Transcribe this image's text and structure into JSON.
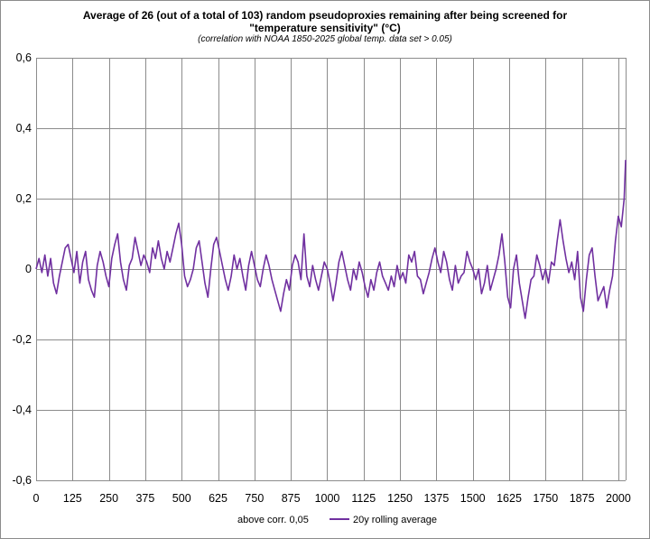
{
  "chart_data": {
    "type": "line",
    "title_lines": [
      "Average of 26 (out of a total of 103) random pseudoproxies remaining after being screened for",
      "\"temperature sensitivity\"  (°C)"
    ],
    "subtitle": "(correlation with NOAA 1850-2025 global  temp. data set > 0.05)",
    "xlabel": "",
    "ylabel": "",
    "xlim": [
      0,
      2025
    ],
    "ylim": [
      -0.6,
      0.6
    ],
    "x_ticks": [
      "0",
      "125",
      "250",
      "375",
      "500",
      "625",
      "750",
      "875",
      "1000",
      "1125",
      "1250",
      "1375",
      "1500",
      "1625",
      "1750",
      "1875",
      "2000"
    ],
    "x_tick_values": [
      0,
      125,
      250,
      375,
      500,
      625,
      750,
      875,
      1000,
      1125,
      1250,
      1375,
      1500,
      1625,
      1750,
      1875,
      2000
    ],
    "y_ticks": [
      "0,6",
      "0,4",
      "0,2",
      "0",
      "-0,2",
      "-0,4",
      "-0,6"
    ],
    "y_tick_values": [
      0.6,
      0.4,
      0.2,
      0,
      -0.2,
      -0.4,
      -0.6
    ],
    "grid": true,
    "legend_position": "bottom",
    "series": [
      {
        "name": "above corr. 0,05",
        "color": "",
        "values": []
      },
      {
        "name": "20y rolling average",
        "color": "#7030a0",
        "x": [
          0,
          10,
          20,
          30,
          40,
          50,
          60,
          70,
          80,
          90,
          100,
          110,
          120,
          130,
          140,
          150,
          160,
          170,
          180,
          190,
          200,
          210,
          220,
          230,
          240,
          250,
          260,
          270,
          280,
          290,
          300,
          310,
          320,
          330,
          340,
          350,
          360,
          370,
          380,
          390,
          400,
          410,
          420,
          430,
          440,
          450,
          460,
          470,
          480,
          490,
          500,
          510,
          520,
          530,
          540,
          550,
          560,
          570,
          580,
          590,
          600,
          610,
          620,
          630,
          640,
          650,
          660,
          670,
          680,
          690,
          700,
          710,
          720,
          730,
          740,
          750,
          760,
          770,
          780,
          790,
          800,
          810,
          820,
          830,
          840,
          850,
          860,
          870,
          880,
          890,
          900,
          910,
          920,
          930,
          940,
          950,
          960,
          970,
          980,
          990,
          1000,
          1010,
          1020,
          1030,
          1040,
          1050,
          1060,
          1070,
          1080,
          1090,
          1100,
          1110,
          1120,
          1130,
          1140,
          1150,
          1160,
          1170,
          1180,
          1190,
          1200,
          1210,
          1220,
          1230,
          1240,
          1250,
          1260,
          1270,
          1280,
          1290,
          1300,
          1310,
          1320,
          1330,
          1340,
          1350,
          1360,
          1370,
          1380,
          1390,
          1400,
          1410,
          1420,
          1430,
          1440,
          1450,
          1460,
          1470,
          1480,
          1490,
          1500,
          1510,
          1520,
          1530,
          1540,
          1550,
          1560,
          1570,
          1580,
          1590,
          1600,
          1610,
          1620,
          1630,
          1640,
          1650,
          1660,
          1670,
          1680,
          1690,
          1700,
          1710,
          1720,
          1730,
          1740,
          1750,
          1760,
          1770,
          1780,
          1790,
          1800,
          1810,
          1820,
          1830,
          1840,
          1850,
          1860,
          1870,
          1880,
          1890,
          1900,
          1910,
          1920,
          1930,
          1940,
          1950,
          1960,
          1970,
          1980,
          1990,
          2000,
          2010,
          2020,
          2025
        ],
        "values": [
          0.0,
          0.03,
          -0.01,
          0.04,
          -0.02,
          0.03,
          -0.04,
          -0.07,
          -0.02,
          0.02,
          0.06,
          0.07,
          0.03,
          -0.01,
          0.05,
          -0.04,
          0.02,
          0.05,
          -0.03,
          -0.06,
          -0.08,
          0.01,
          0.05,
          0.02,
          -0.02,
          -0.05,
          0.03,
          0.07,
          0.1,
          0.02,
          -0.03,
          -0.06,
          0.01,
          0.03,
          0.09,
          0.05,
          0.01,
          0.04,
          0.02,
          -0.01,
          0.06,
          0.03,
          0.08,
          0.03,
          0.0,
          0.05,
          0.02,
          0.06,
          0.1,
          0.13,
          0.07,
          -0.02,
          -0.05,
          -0.03,
          0.0,
          0.06,
          0.08,
          0.02,
          -0.04,
          -0.08,
          0.0,
          0.07,
          0.09,
          0.05,
          0.01,
          -0.03,
          -0.06,
          -0.02,
          0.04,
          0.0,
          0.03,
          -0.02,
          -0.06,
          0.01,
          0.05,
          0.01,
          -0.03,
          -0.05,
          0.0,
          0.04,
          0.01,
          -0.03,
          -0.06,
          -0.09,
          -0.12,
          -0.07,
          -0.03,
          -0.06,
          0.01,
          0.04,
          0.02,
          -0.03,
          0.1,
          -0.02,
          -0.05,
          0.01,
          -0.03,
          -0.06,
          -0.02,
          0.02,
          0.0,
          -0.04,
          -0.09,
          -0.04,
          0.02,
          0.05,
          0.01,
          -0.03,
          -0.06,
          0.0,
          -0.03,
          0.02,
          -0.01,
          -0.05,
          -0.08,
          -0.03,
          -0.06,
          -0.01,
          0.02,
          -0.02,
          -0.04,
          -0.06,
          -0.02,
          -0.05,
          0.01,
          -0.03,
          -0.01,
          -0.04,
          0.04,
          0.02,
          0.05,
          -0.02,
          -0.03,
          -0.07,
          -0.04,
          -0.01,
          0.03,
          0.06,
          0.02,
          -0.01,
          0.05,
          0.02,
          -0.03,
          -0.06,
          0.01,
          -0.04,
          -0.02,
          -0.01,
          0.05,
          0.02,
          0.0,
          -0.03,
          0.0,
          -0.07,
          -0.04,
          0.01,
          -0.06,
          -0.03,
          0.0,
          0.04,
          0.1,
          0.02,
          -0.08,
          -0.11,
          0.0,
          0.04,
          -0.04,
          -0.09,
          -0.14,
          -0.08,
          -0.03,
          -0.02,
          0.04,
          0.01,
          -0.03,
          0.0,
          -0.04,
          0.02,
          0.01,
          0.08,
          0.14,
          0.08,
          0.03,
          -0.01,
          0.02,
          -0.03,
          0.05,
          -0.08,
          -0.12,
          -0.03,
          0.04,
          0.06,
          -0.02,
          -0.09,
          -0.07,
          -0.05,
          -0.11,
          -0.06,
          -0.02,
          0.08,
          0.15,
          0.12,
          0.2,
          0.31
        ]
      }
    ]
  },
  "legend": {
    "entries": [
      "above corr. 0,05",
      "20y rolling average"
    ]
  }
}
